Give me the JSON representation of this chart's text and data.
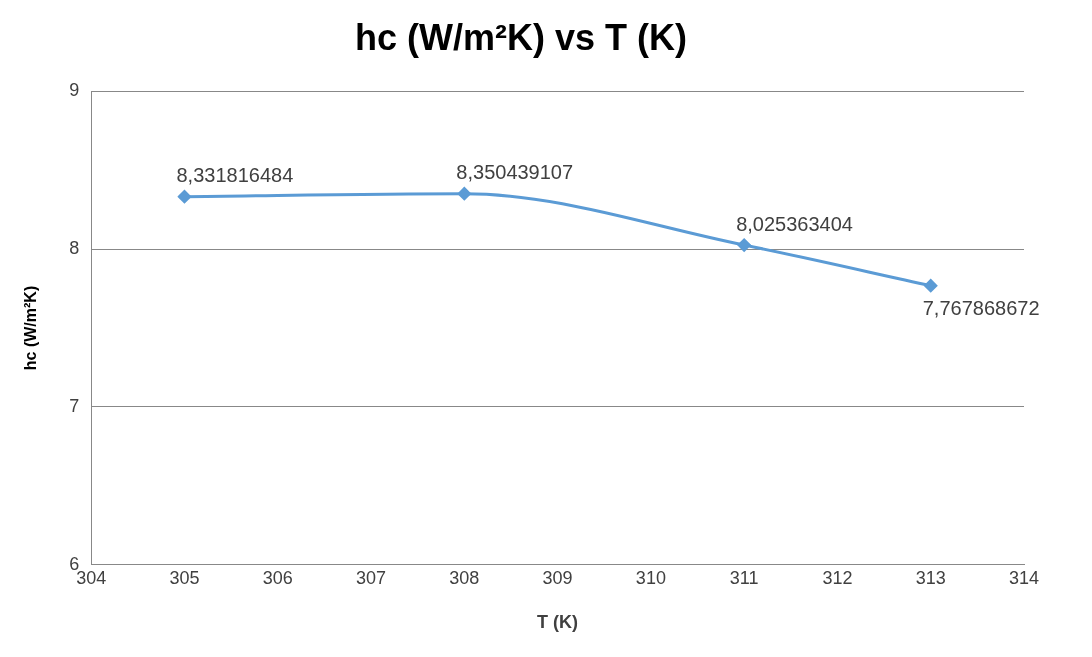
{
  "chart_data": {
    "type": "line",
    "title": "hc (W/m²K) vs T (K)",
    "xlabel": "T (K)",
    "ylabel": "hc (W/m²K)",
    "x": [
      305,
      308,
      311,
      313
    ],
    "series": [
      {
        "color": "#5b9bd5",
        "values": [
          8.331816484,
          8.350439107,
          8.025363404,
          7.767868672
        ],
        "value_labels": [
          "8,331816484",
          "8,350439107",
          "8,025363404",
          "7,767868672"
        ]
      }
    ],
    "xlim": [
      304,
      314
    ],
    "xticks": [
      304,
      305,
      306,
      307,
      308,
      309,
      310,
      311,
      312,
      313,
      314
    ],
    "ylim": [
      6,
      9
    ],
    "yticks": [
      6,
      7,
      8,
      9
    ],
    "grid": "y",
    "legend": false,
    "marker": "diamond",
    "line_style": "solid"
  }
}
